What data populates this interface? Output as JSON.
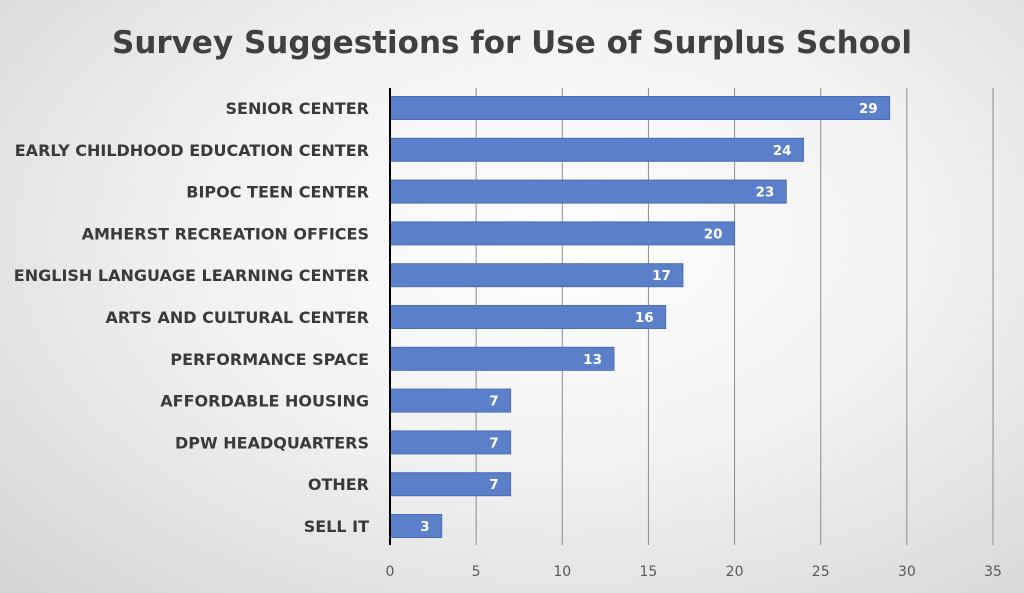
{
  "chart_data": {
    "type": "bar",
    "orientation": "horizontal",
    "title": "Survey Suggestions for Use of Surplus School",
    "xlabel": "",
    "ylabel": "",
    "categories": [
      "SENIOR CENTER",
      "EARLY CHILDHOOD EDUCATION CENTER",
      "BIPOC TEEN CENTER",
      "AMHERST RECREATION OFFICES",
      "ENGLISH LANGUAGE LEARNING CENTER",
      "ARTS AND CULTURAL CENTER",
      "PERFORMANCE SPACE",
      "AFFORDABLE HOUSING",
      "DPW HEADQUARTERS",
      "OTHER",
      "SELL IT"
    ],
    "values": [
      29,
      24,
      23,
      20,
      17,
      16,
      13,
      7,
      7,
      7,
      3
    ],
    "xlim": [
      0,
      35
    ],
    "xticks": [
      "0",
      "5",
      "10",
      "15",
      "20",
      "25",
      "30",
      "35"
    ],
    "grid": "vertical",
    "legend": "none",
    "data_labels": true,
    "colors": {
      "bar": "#5b80c9",
      "bar_edge": "#4a6fb8",
      "title": "#404040",
      "grid": "#8c8c8c",
      "axis": "#000000"
    }
  }
}
